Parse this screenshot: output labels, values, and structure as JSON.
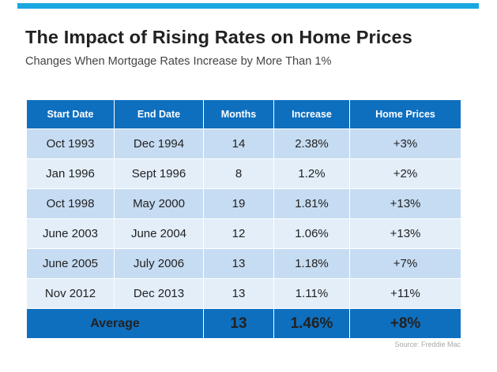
{
  "title": "The Impact of Rising Rates on Home Prices",
  "subtitle": "Changes When Mortgage Rates Increase by More Than 1%",
  "table": {
    "headers": [
      "Start Date",
      "End Date",
      "Months",
      "Increase",
      "Home Prices"
    ],
    "rows": [
      [
        "Oct 1993",
        "Dec 1994",
        "14",
        "2.38%",
        "+3%"
      ],
      [
        "Jan 1996",
        "Sept 1996",
        "8",
        "1.2%",
        "+2%"
      ],
      [
        "Oct 1998",
        "May 2000",
        "19",
        "1.81%",
        "+13%"
      ],
      [
        "June 2003",
        "June 2004",
        "12",
        "1.06%",
        "+13%"
      ],
      [
        "June 2005",
        "July 2006",
        "13",
        "1.18%",
        "+7%"
      ],
      [
        "Nov 2012",
        "Dec 2013",
        "13",
        "1.11%",
        "+11%"
      ]
    ],
    "average": {
      "label": "Average",
      "months": "13",
      "increase": "1.46%",
      "home_prices": "+8%"
    }
  },
  "source": "Source: Freddie Mac",
  "colors": {
    "accent_bar": "#1aa7e0",
    "header_bg": "#0f6fbf",
    "row_dark": "#c6dcf2",
    "row_light": "#e3eef9"
  }
}
